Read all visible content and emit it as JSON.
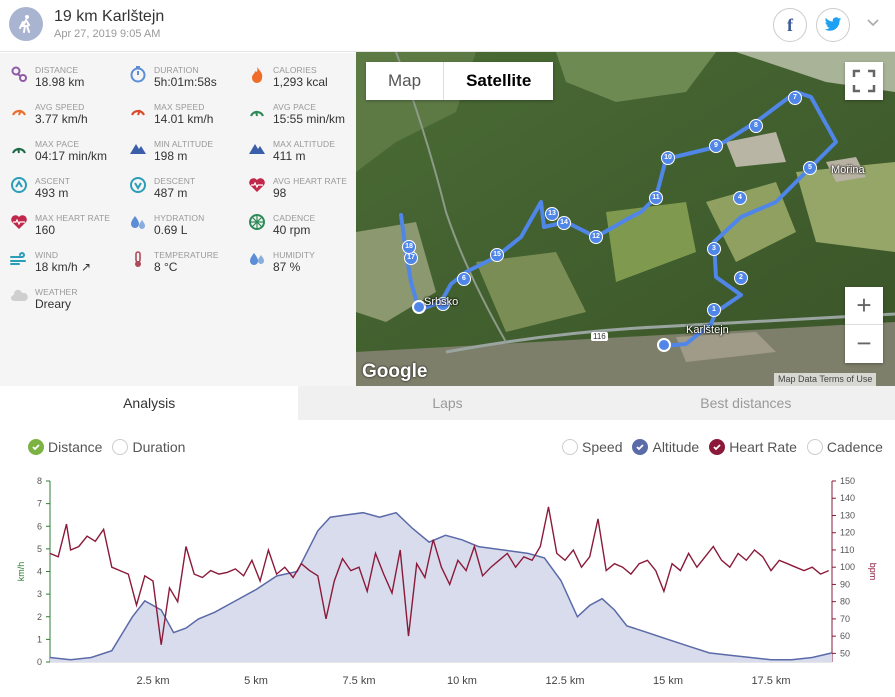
{
  "header": {
    "title": "19 km Karlštejn",
    "date": "Apr 27, 2019 9:05 AM",
    "facebook_label": "f"
  },
  "stats": [
    {
      "label": "DISTANCE",
      "value": "18.98 km",
      "icon": "distance-icon",
      "color": "#8e5aa8"
    },
    {
      "label": "DURATION",
      "value": "5h:01m:58s",
      "icon": "stopwatch-icon",
      "color": "#5b8ed6"
    },
    {
      "label": "CALORIES",
      "value": "1,293 kcal",
      "icon": "flame-icon",
      "color": "#ef6c2a"
    },
    {
      "label": "AVG SPEED",
      "value": "3.77 km/h",
      "icon": "speedometer-icon",
      "color": "#ef6c2a"
    },
    {
      "label": "MAX SPEED",
      "value": "14.01 km/h",
      "icon": "speedometer-icon",
      "color": "#d94b2b"
    },
    {
      "label": "AVG PACE",
      "value": "15:55 min/km",
      "icon": "pace-icon",
      "color": "#2e8b57"
    },
    {
      "label": "MAX PACE",
      "value": "04:17 min/km",
      "icon": "pace-icon",
      "color": "#1e6b46"
    },
    {
      "label": "MIN ALTITUDE",
      "value": "198 m",
      "icon": "mountain-icon",
      "color": "#3a5fa8"
    },
    {
      "label": "MAX ALTITUDE",
      "value": "411 m",
      "icon": "mountain-icon",
      "color": "#3a5fa8"
    },
    {
      "label": "ASCENT",
      "value": "493 m",
      "icon": "ascent-icon",
      "color": "#2a9db8"
    },
    {
      "label": "DESCENT",
      "value": "487 m",
      "icon": "descent-icon",
      "color": "#2a9db8"
    },
    {
      "label": "AVG HEART RATE",
      "value": "98",
      "icon": "heart-rate-icon",
      "color": "#c0274a"
    },
    {
      "label": "MAX HEART RATE",
      "value": "160",
      "icon": "heart-icon",
      "color": "#c0274a"
    },
    {
      "label": "HYDRATION",
      "value": "0.69 L",
      "icon": "droplets-icon",
      "color": "#5b8ed6"
    },
    {
      "label": "CADENCE",
      "value": "40 rpm",
      "icon": "wheel-icon",
      "color": "#2e8b57"
    },
    {
      "label": "WIND",
      "value": "18 km/h ↗",
      "icon": "wind-icon",
      "color": "#2a9db8"
    },
    {
      "label": "TEMPERATURE",
      "value": "8 °C",
      "icon": "thermometer-icon",
      "color": "#b04a5a"
    },
    {
      "label": "HUMIDITY",
      "value": "87 %",
      "icon": "humidity-icon",
      "color": "#5b8ed6"
    },
    {
      "label": "WEATHER",
      "value": "Dreary",
      "icon": "cloud-icon",
      "color": "#cfcfcf"
    }
  ],
  "map": {
    "map_label": "Map",
    "satellite_label": "Satellite",
    "google_label": "Google",
    "footer": "Map Data    Terms of Use",
    "zoom_in": "+",
    "zoom_out": "−",
    "place_karlstejn": "Karlštejn",
    "place_morina": "Mořina",
    "place_srbsko": "Srbsko",
    "road_number": "116",
    "waypoints": [
      "1",
      "2",
      "3",
      "4",
      "5",
      "6",
      "7",
      "8",
      "9",
      "10",
      "11",
      "12",
      "13",
      "14",
      "15",
      "16",
      "17",
      "18"
    ]
  },
  "tabs": [
    {
      "label": "Analysis",
      "active": true
    },
    {
      "label": "Laps",
      "active": false
    },
    {
      "label": "Best distances",
      "active": false
    }
  ],
  "x_axis_options": [
    {
      "label": "Distance",
      "checked": true,
      "color": "#7cb342"
    },
    {
      "label": "Duration",
      "checked": false
    }
  ],
  "series_options": [
    {
      "label": "Speed",
      "checked": false
    },
    {
      "label": "Altitude",
      "checked": true,
      "color": "#5b6aa8"
    },
    {
      "label": "Heart Rate",
      "checked": true,
      "color": "#8b1a3a"
    },
    {
      "label": "Cadence",
      "checked": false
    }
  ],
  "chart_data": {
    "type": "area",
    "x_ticks": [
      "2.5 km",
      "5 km",
      "7.5 km",
      "10 km",
      "12.5 km",
      "15 km",
      "17.5 km"
    ],
    "x_tick_values": [
      2.5,
      5,
      7.5,
      10,
      12.5,
      15,
      17.5
    ],
    "xlim": [
      0,
      18.98
    ],
    "left_axis": {
      "label": "km/h",
      "ticks": [
        0,
        1,
        2,
        3,
        4,
        5,
        6,
        7,
        8
      ],
      "ylim": [
        0,
        8
      ],
      "color": "#2e7d32"
    },
    "right_axis": {
      "label": "bpm",
      "ticks": [
        50,
        60,
        70,
        80,
        90,
        100,
        110,
        120,
        130,
        140,
        150
      ],
      "ylim": [
        45,
        150
      ],
      "color": "#8b1a3a"
    },
    "series": [
      {
        "name": "Altitude",
        "color": "#5b6aa8",
        "fill": "#d8dced",
        "x": [
          0,
          0.5,
          1.0,
          1.5,
          2.0,
          2.3,
          2.7,
          3.0,
          3.3,
          3.6,
          4.0,
          4.5,
          5.0,
          5.5,
          6.0,
          6.5,
          6.8,
          7.2,
          7.6,
          8.0,
          8.4,
          8.8,
          9.2,
          9.6,
          10.0,
          10.4,
          10.8,
          11.2,
          11.6,
          12.0,
          12.4,
          12.8,
          13.1,
          13.4,
          13.7,
          14.0,
          14.5,
          15.0,
          15.5,
          16.0,
          16.5,
          17.0,
          17.5,
          18.0,
          18.5,
          18.98
        ],
        "values": [
          0.2,
          0.1,
          0.2,
          0.5,
          2.0,
          2.7,
          2.3,
          1.3,
          1.5,
          1.9,
          2.2,
          2.7,
          3.2,
          3.8,
          4.0,
          5.8,
          6.4,
          6.5,
          6.6,
          6.4,
          6.6,
          5.9,
          5.3,
          5.6,
          5.4,
          5.1,
          5.0,
          4.9,
          4.8,
          4.6,
          3.6,
          2.0,
          2.5,
          2.8,
          2.3,
          1.6,
          1.3,
          1.0,
          0.7,
          0.4,
          0.3,
          0.2,
          0.1,
          0.1,
          0.2,
          0.4
        ]
      },
      {
        "name": "Heart Rate",
        "color": "#8b1a3a",
        "x": [
          0,
          0.2,
          0.4,
          0.5,
          0.7,
          0.9,
          1.1,
          1.3,
          1.5,
          1.7,
          1.9,
          2.1,
          2.3,
          2.5,
          2.7,
          2.9,
          3.1,
          3.3,
          3.5,
          3.7,
          3.9,
          4.1,
          4.3,
          4.5,
          4.7,
          4.9,
          5.1,
          5.3,
          5.5,
          5.7,
          5.9,
          6.1,
          6.3,
          6.5,
          6.7,
          6.9,
          7.1,
          7.3,
          7.5,
          7.7,
          7.9,
          8.1,
          8.3,
          8.5,
          8.7,
          8.9,
          9.1,
          9.3,
          9.5,
          9.7,
          9.9,
          10.1,
          10.3,
          10.5,
          10.7,
          10.9,
          11.1,
          11.3,
          11.5,
          11.7,
          11.9,
          12.1,
          12.3,
          12.5,
          12.7,
          12.9,
          13.1,
          13.3,
          13.5,
          13.7,
          13.9,
          14.1,
          14.3,
          14.5,
          14.7,
          14.9,
          15.1,
          15.3,
          15.5,
          15.7,
          15.9,
          16.1,
          16.3,
          16.5,
          16.7,
          16.9,
          17.1,
          17.3,
          17.5,
          17.7,
          17.9,
          18.1,
          18.3,
          18.5,
          18.7,
          18.9
        ],
        "values": [
          108,
          106,
          125,
          110,
          112,
          118,
          115,
          122,
          100,
          98,
          96,
          78,
          95,
          92,
          55,
          88,
          80,
          112,
          96,
          94,
          98,
          96,
          97,
          99,
          95,
          104,
          92,
          110,
          96,
          100,
          94,
          102,
          98,
          95,
          70,
          92,
          105,
          98,
          100,
          86,
          108,
          96,
          85,
          110,
          60,
          102,
          94,
          116,
          100,
          90,
          104,
          98,
          112,
          95,
          100,
          104,
          108,
          100,
          106,
          104,
          112,
          135,
          108,
          104,
          110,
          100,
          106,
          128,
          98,
          102,
          100,
          96,
          102,
          104,
          98,
          86,
          102,
          98,
          108,
          100,
          106,
          112,
          104,
          100,
          108,
          104,
          110,
          106,
          98,
          104,
          102,
          100,
          98,
          100,
          96,
          98
        ]
      }
    ]
  }
}
